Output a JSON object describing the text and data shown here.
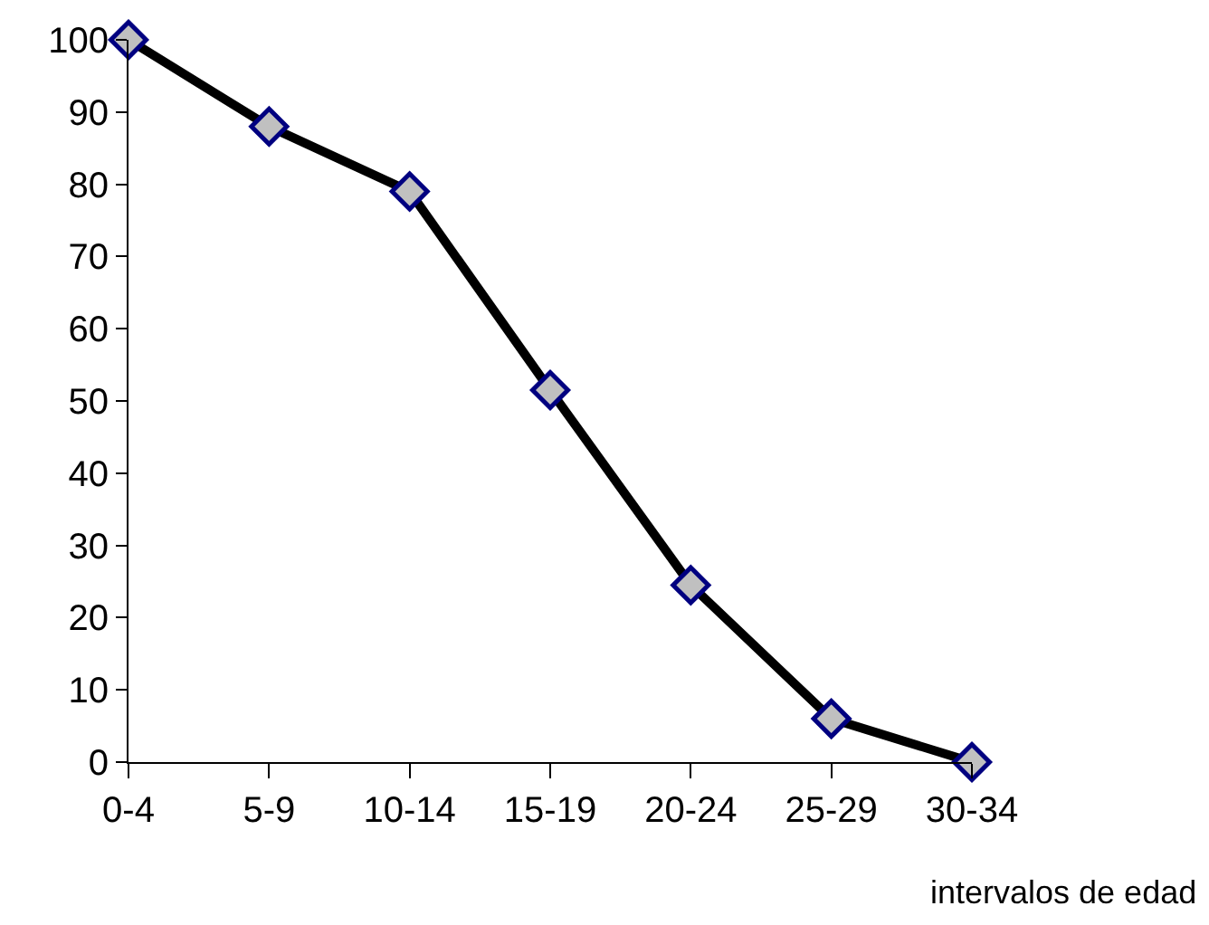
{
  "chart_data": {
    "type": "line",
    "xlabel": "intervalos de edad",
    "categories": [
      "0-4",
      "5-9",
      "10-14",
      "15-19",
      "20-24",
      "25-29",
      "30-34"
    ],
    "series": [
      {
        "color": "#000000",
        "values": [
          100,
          88,
          79,
          51.5,
          24.5,
          6,
          0
        ]
      }
    ],
    "ylim": [
      0,
      100
    ],
    "yticks": [
      0,
      10,
      20,
      30,
      40,
      50,
      60,
      70,
      80,
      90,
      100
    ],
    "marker": "diamond",
    "line_style": "solid"
  }
}
